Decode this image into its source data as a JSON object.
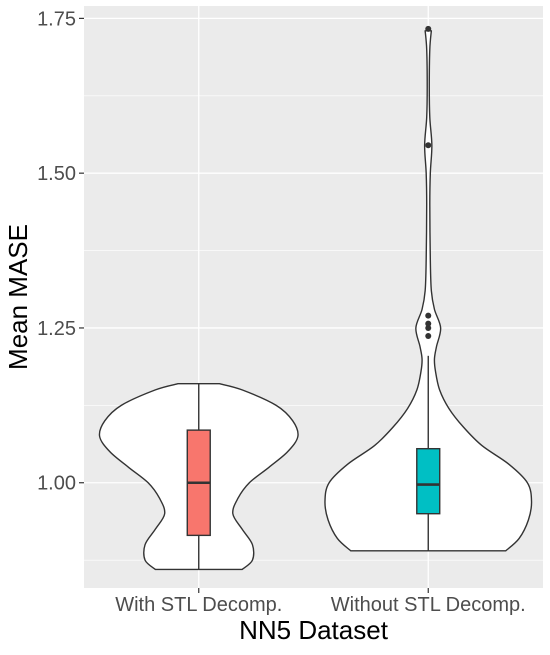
{
  "chart_data": {
    "type": "violin",
    "title": "",
    "xlabel": "NN5 Dataset",
    "ylabel": "Mean MASE",
    "ylim": [
      0.83,
      1.77
    ],
    "yticks": [
      1.0,
      1.25,
      1.5,
      1.75
    ],
    "ytick_labels": [
      "1.00",
      "1.25",
      "1.50",
      "1.75"
    ],
    "grid": true,
    "legend": "none",
    "colors": {
      "panel_background": "#ebebeb",
      "grid": "#ffffff",
      "violin_fill": "#ffffff",
      "outline": "#333333"
    },
    "categories": [
      "With STL Decomp.",
      "Without STL Decomp."
    ],
    "series": [
      {
        "box_color": "#f8766d",
        "violin_profile": [
          [
            0.86,
            0.42
          ],
          [
            0.875,
            0.52
          ],
          [
            0.9,
            0.52
          ],
          [
            0.925,
            0.42
          ],
          [
            0.95,
            0.33
          ],
          [
            0.975,
            0.38
          ],
          [
            1.0,
            0.49
          ],
          [
            1.025,
            0.68
          ],
          [
            1.05,
            0.86
          ],
          [
            1.075,
            0.96
          ],
          [
            1.1,
            0.91
          ],
          [
            1.125,
            0.75
          ],
          [
            1.15,
            0.42
          ],
          [
            1.16,
            0.2
          ]
        ],
        "box": {
          "min": 0.86,
          "q1": 0.915,
          "median": 1.0,
          "q3": 1.085,
          "max": 1.16
        },
        "outliers": []
      },
      {
        "box_color": "#00bfc4",
        "violin_profile": [
          [
            0.89,
            0.75
          ],
          [
            0.91,
            0.88
          ],
          [
            0.94,
            0.97
          ],
          [
            0.97,
            1.0
          ],
          [
            1.0,
            0.96
          ],
          [
            1.03,
            0.78
          ],
          [
            1.06,
            0.52
          ],
          [
            1.09,
            0.34
          ],
          [
            1.12,
            0.2
          ],
          [
            1.15,
            0.11
          ],
          [
            1.18,
            0.07
          ],
          [
            1.2,
            0.06
          ],
          [
            1.22,
            0.08
          ],
          [
            1.25,
            0.12
          ],
          [
            1.28,
            0.06
          ],
          [
            1.31,
            0.03
          ],
          [
            1.36,
            0.02
          ],
          [
            1.45,
            0.015
          ],
          [
            1.5,
            0.02
          ],
          [
            1.545,
            0.035
          ],
          [
            1.59,
            0.015
          ],
          [
            1.64,
            0.01
          ],
          [
            1.7,
            0.015
          ],
          [
            1.73,
            0.03
          ]
        ],
        "box": {
          "min": 0.89,
          "q1": 0.95,
          "median": 0.997,
          "q3": 1.055,
          "max": 1.205
        },
        "outliers": [
          1.237,
          1.25,
          1.257,
          1.27,
          1.545,
          1.733
        ]
      }
    ]
  }
}
